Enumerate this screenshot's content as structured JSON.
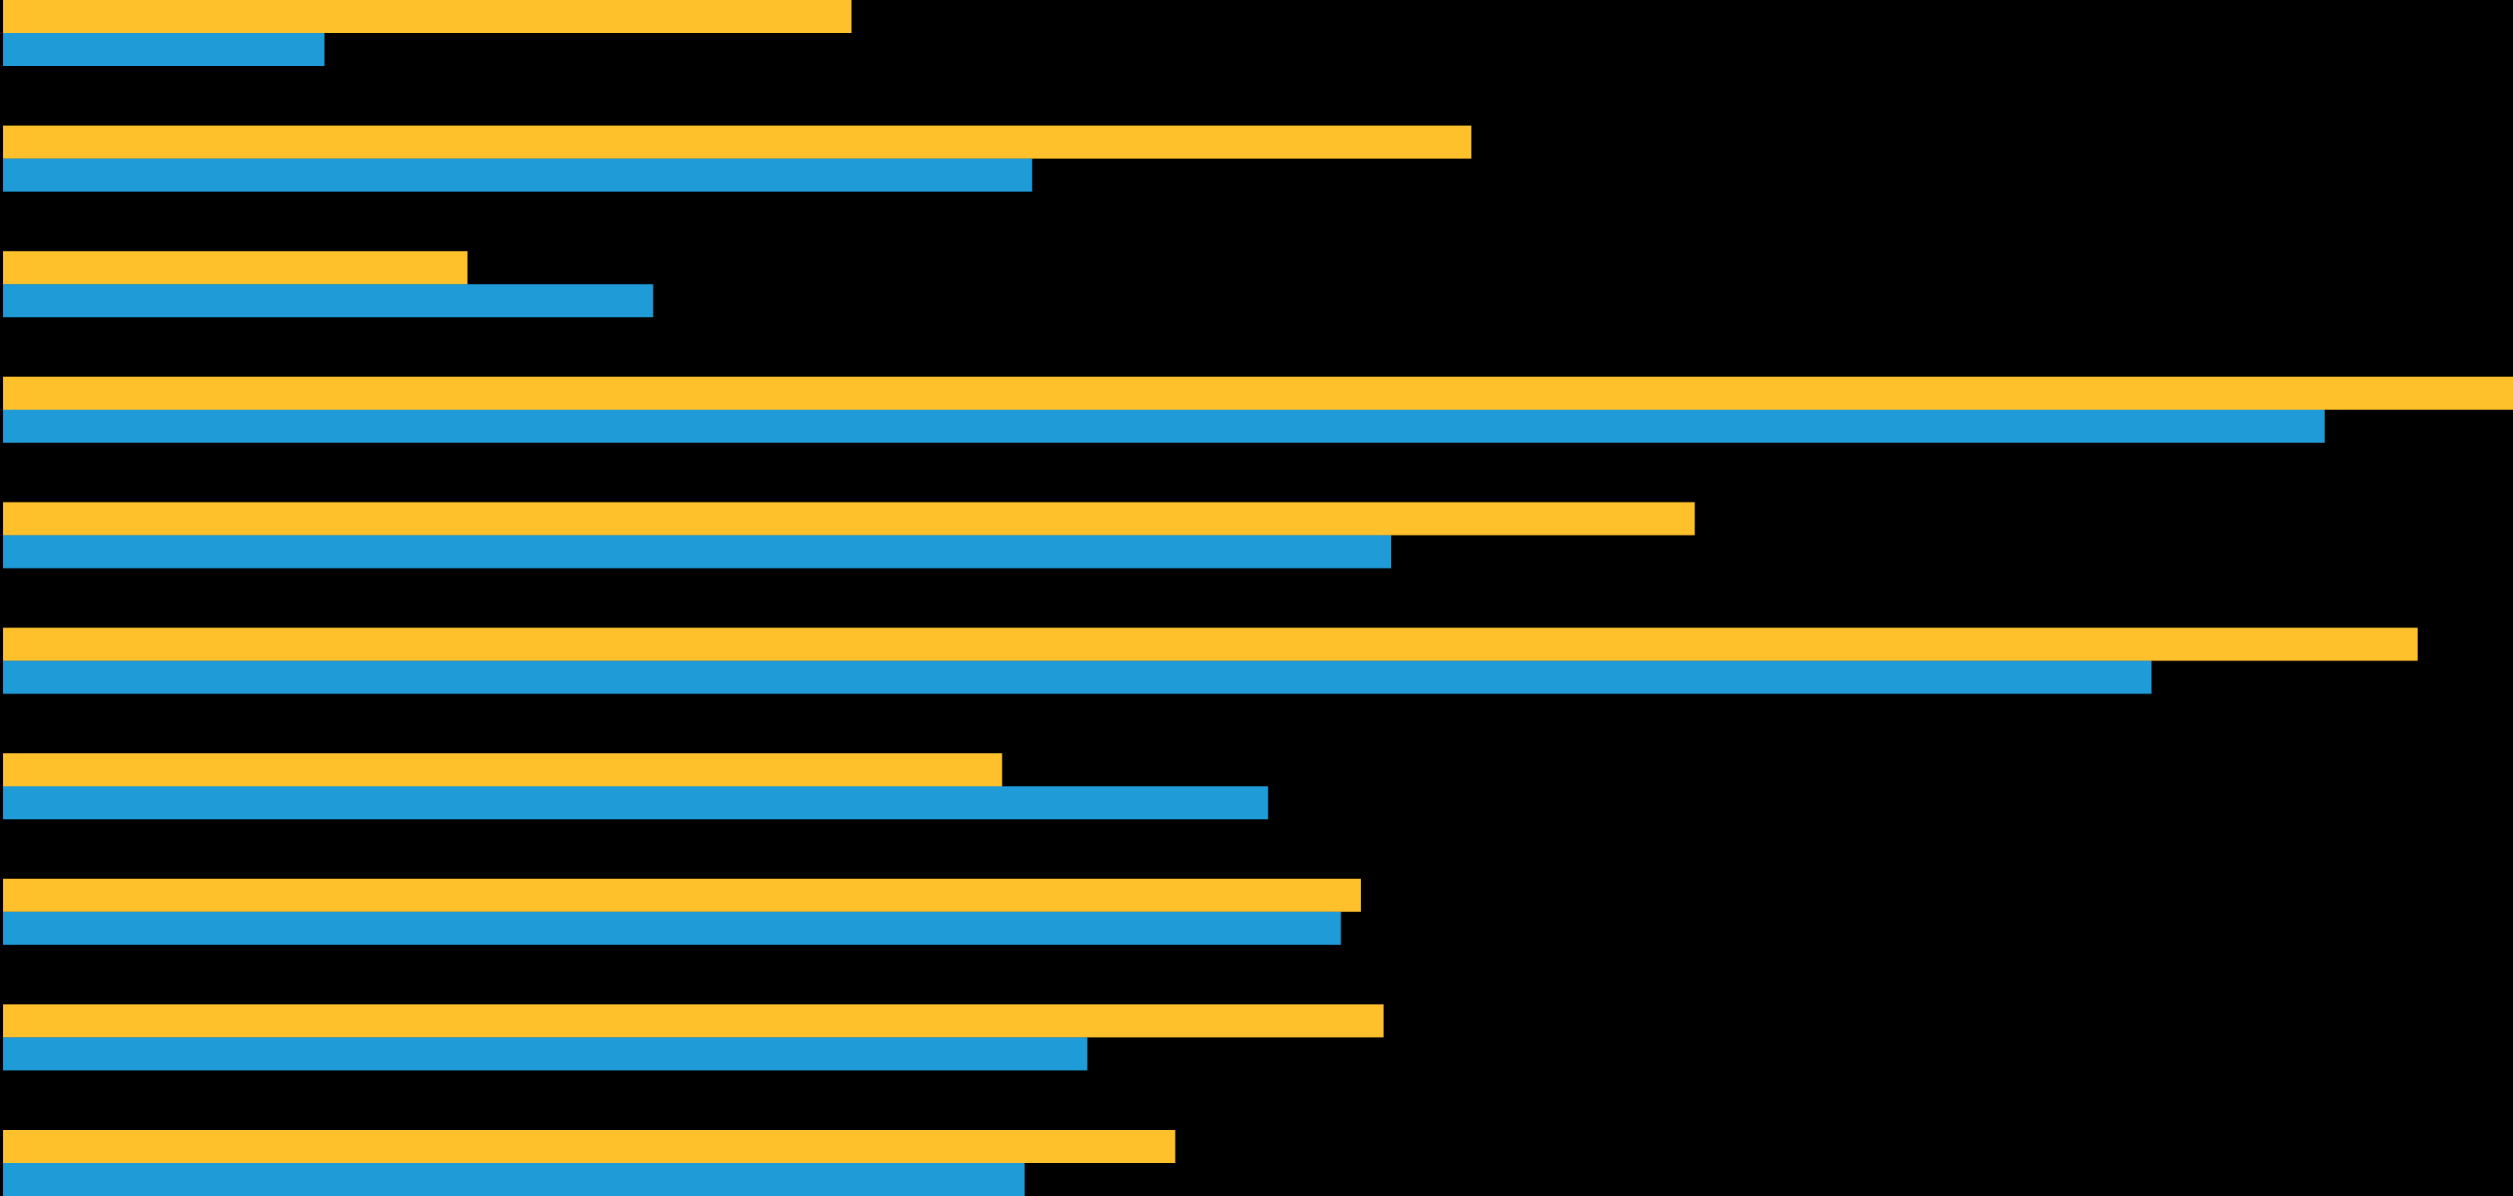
{
  "chart_data": {
    "type": "hbar",
    "categories": [
      null,
      null,
      null,
      null,
      null,
      null,
      null,
      null,
      null,
      null
    ],
    "series": [
      {
        "color": "#ffc12b",
        "values": [
          33.8,
          58.5,
          18.5,
          100,
          67.4,
          96.2,
          39.8,
          54.1,
          55.0,
          46.7
        ]
      },
      {
        "color": "#1f9bd7",
        "values": [
          12.8,
          41.0,
          25.9,
          92.5,
          55.3,
          85.6,
          50.4,
          53.3,
          43.2,
          40.7
        ]
      }
    ],
    "xlim": [
      0,
      100
    ],
    "background": "#000000"
  }
}
